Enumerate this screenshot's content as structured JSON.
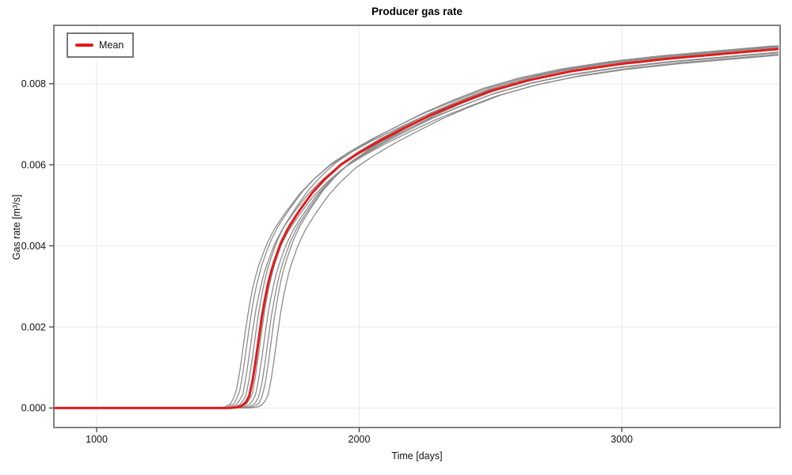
{
  "chart_data": {
    "type": "line",
    "title": "Producer gas rate",
    "xlabel": "Time [days]",
    "ylabel": "Gas rate [m³/s]",
    "xlim": [
      837,
      3603
    ],
    "ylim": [
      -0.00048,
      0.00944
    ],
    "grid": true,
    "legend": {
      "label": "Mean",
      "position": "upper-left"
    },
    "colors": {
      "mean": "#e31a1a",
      "ensemble": "#8c8c8c",
      "grid": "#ebebeb",
      "frame": "#757575",
      "tick": "#444444",
      "text": "#111111",
      "background": "#ffffff"
    },
    "xticks": {
      "values": [
        1000,
        2000,
        3000
      ],
      "labels": [
        "1000",
        "2000",
        "3000"
      ]
    },
    "yticks": {
      "values": [
        0.0,
        0.002,
        0.004,
        0.006,
        0.008
      ],
      "labels": [
        "0.000",
        "0.002",
        "0.004",
        "0.006",
        "0.008"
      ]
    },
    "mean_series": {
      "name": "Mean",
      "t": [
        837,
        1450,
        1500,
        1540,
        1565,
        1585,
        1600,
        1615,
        1630,
        1650,
        1670,
        1700,
        1730,
        1770,
        1820,
        1870,
        1930,
        2000,
        2080,
        2170,
        2270,
        2380,
        2500,
        2640,
        2800,
        2985,
        3180,
        3390,
        3603
      ],
      "q": [
        0,
        0,
        0,
        2e-05,
        0.0001,
        0.00035,
        0.0009,
        0.0016,
        0.0023,
        0.003,
        0.0035,
        0.00405,
        0.00445,
        0.00485,
        0.0053,
        0.00565,
        0.006,
        0.0063,
        0.0066,
        0.0069,
        0.00722,
        0.00752,
        0.00782,
        0.00808,
        0.0083,
        0.00848,
        0.00862,
        0.00874,
        0.00886
      ]
    },
    "ensemble": {
      "name": "realizations",
      "count": 10,
      "note": "gray realization curves derived from mean: q(t) = scale * mean(t - (shift + drift*clamp((t-1600)/800,0,1)))",
      "members": [
        {
          "shift": -55,
          "drift": 40,
          "scale": 0.998
        },
        {
          "shift": -42,
          "drift": 20,
          "scale": 1.006
        },
        {
          "shift": -28,
          "drift": 35,
          "scale": 0.99
        },
        {
          "shift": -14,
          "drift": -15,
          "scale": 1.008
        },
        {
          "shift": -3,
          "drift": 25,
          "scale": 0.984
        },
        {
          "shift": 8,
          "drift": -20,
          "scale": 1.004
        },
        {
          "shift": 22,
          "drift": -10,
          "scale": 0.992
        },
        {
          "shift": 38,
          "drift": -25,
          "scale": 1.0
        },
        {
          "shift": 52,
          "drift": -35,
          "scale": 1.01
        },
        {
          "shift": 72,
          "drift": -30,
          "scale": 0.988
        }
      ]
    }
  }
}
